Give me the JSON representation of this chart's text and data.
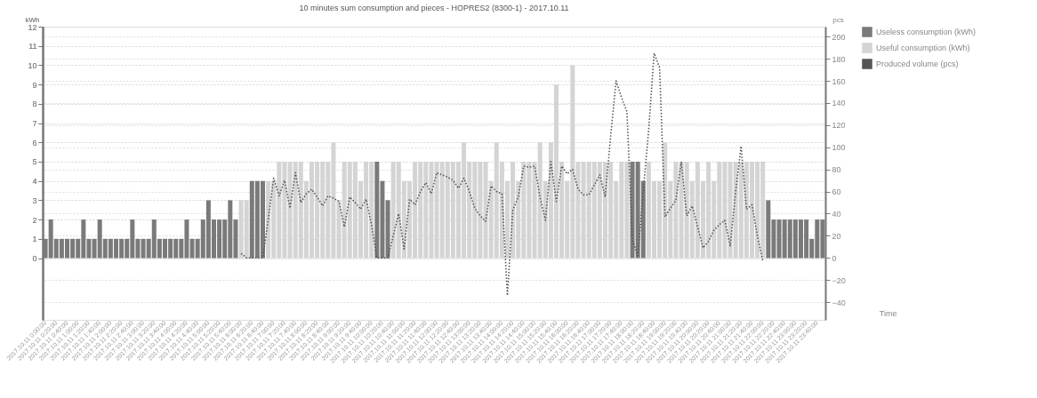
{
  "chart_data": {
    "type": "bar",
    "title": "10 minutes sum consumption and pieces - HOPRES2 (8300-1) - 2017.10.11",
    "xlabel": "Time",
    "ylabel": "kWh",
    "y2label": "pcs",
    "categories": [
      "2017.10.11 0:00:00",
      null,
      "2017.10.11 0:20:00",
      null,
      "2017.10.11 0:40:00",
      null,
      "2017.10.11 1:00:00",
      null,
      "2017.10.11 1:20:00",
      null,
      "2017.10.11 1:40:00",
      null,
      "2017.10.11 2:00:00",
      null,
      "2017.10.11 2:20:00",
      null,
      "2017.10.11 2:40:00",
      null,
      "2017.10.11 3:00:00",
      null,
      "2017.10.11 3:20:00",
      null,
      "2017.10.11 3:40:00",
      null,
      "2017.10.11 4:00:00",
      null,
      "2017.10.11 4:20:00",
      null,
      "2017.10.11 4:40:00",
      null,
      "2017.10.11 5:00:00",
      null,
      "2017.10.11 5:20:00",
      null,
      "2017.10.11 5:40:00",
      null,
      "2017.10.11 6:00:00",
      null,
      "2017.10.11 6:20:00",
      null,
      "2017.10.11 6:40:00",
      null,
      "2017.10.11 7:00:00",
      null,
      "2017.10.11 7:20:00",
      null,
      "2017.10.11 7:40:00",
      null,
      "2017.10.11 8:00:00",
      null,
      "2017.10.11 8:20:00",
      null,
      "2017.10.11 8:40:00",
      null,
      "2017.10.11 9:00:00",
      null,
      "2017.10.11 9:20:00",
      null,
      "2017.10.11 9:40:00",
      null,
      "2017.10.11 10:00:00",
      null,
      "2017.10.11 10:20:00",
      null,
      "2017.10.11 10:40:00",
      null,
      "2017.10.11 11:00:00",
      null,
      "2017.10.11 11:20:00",
      null,
      "2017.10.11 11:40:00",
      null,
      "2017.10.11 12:00:00",
      null,
      "2017.10.11 12:20:00",
      null,
      "2017.10.11 12:40:00",
      null,
      "2017.10.11 13:00:00",
      null,
      "2017.10.11 13:20:00",
      null,
      "2017.10.11 13:40:00",
      null,
      "2017.10.11 14:00:00",
      null,
      "2017.10.11 14:20:00",
      null,
      "2017.10.11 14:40:00",
      null,
      "2017.10.11 15:00:00",
      null,
      "2017.10.11 15:20:00",
      null,
      "2017.10.11 15:40:00",
      null,
      "2017.10.11 16:00:00",
      null,
      "2017.10.11 16:20:00",
      null,
      "2017.10.11 16:40:00",
      null,
      "2017.10.11 17:00:00",
      null,
      "2017.10.11 17:20:00",
      null,
      "2017.10.11 17:40:00",
      null,
      "2017.10.11 18:00:00",
      null,
      "2017.10.11 18:20:00",
      null,
      "2017.10.11 18:40:00",
      null,
      "2017.10.11 19:00:00",
      null,
      "2017.10.11 19:20:00",
      null,
      "2017.10.11 19:40:00",
      null,
      "2017.10.11 20:00:00",
      null,
      "2017.10.11 20:20:00",
      null,
      "2017.10.11 20:40:00",
      null,
      "2017.10.11 21:00:00",
      null,
      "2017.10.11 21:20:00",
      null,
      "2017.10.11 21:40:00",
      null,
      "2017.10.11 22:00:00",
      null,
      "2017.10.11 22:20:00",
      null,
      "2017.10.11 22:40:00",
      null,
      "2017.10.11 23:00:00",
      null,
      "2017.10.11 23:20:00",
      null,
      "2017.10.11 23:40:00",
      null
    ],
    "series": [
      {
        "name": "Useless consumption (kWh)",
        "color": "#7a7a7a",
        "values": [
          1,
          2,
          1,
          1,
          1,
          1,
          1,
          2,
          1,
          1,
          2,
          1,
          1,
          1,
          1,
          1,
          2,
          1,
          1,
          1,
          2,
          1,
          1,
          1,
          1,
          1,
          2,
          1,
          1,
          2,
          3,
          2,
          2,
          2,
          3,
          2,
          null,
          null,
          4,
          4,
          4,
          null,
          null,
          null,
          null,
          null,
          null,
          null,
          null,
          null,
          null,
          null,
          null,
          null,
          null,
          null,
          null,
          null,
          null,
          null,
          null,
          5,
          4,
          3,
          null,
          null,
          null,
          null,
          null,
          null,
          null,
          null,
          null,
          null,
          null,
          null,
          null,
          null,
          null,
          null,
          null,
          null,
          null,
          null,
          null,
          null,
          null,
          null,
          null,
          null,
          null,
          null,
          null,
          null,
          null,
          null,
          null,
          null,
          null,
          null,
          null,
          null,
          null,
          null,
          null,
          null,
          null,
          null,
          5,
          5,
          4,
          null,
          null,
          null,
          null,
          null,
          null,
          null,
          null,
          null,
          null,
          null,
          null,
          null,
          null,
          null,
          null,
          null,
          null,
          null,
          null,
          null,
          null,
          3,
          2,
          2,
          2,
          2,
          2,
          2,
          2,
          1,
          2,
          2
        ]
      },
      {
        "name": "Useful consumption (kWh)",
        "color": "#d4d4d4",
        "values": [
          null,
          null,
          null,
          null,
          null,
          null,
          null,
          null,
          null,
          null,
          null,
          null,
          null,
          null,
          null,
          null,
          null,
          null,
          null,
          null,
          null,
          null,
          null,
          null,
          null,
          null,
          null,
          null,
          null,
          null,
          null,
          null,
          null,
          null,
          null,
          null,
          3,
          3,
          null,
          null,
          null,
          4,
          4,
          5,
          5,
          5,
          5,
          5,
          4,
          5,
          5,
          5,
          5,
          6,
          3,
          5,
          5,
          5,
          4,
          5,
          5,
          null,
          null,
          null,
          5,
          5,
          4,
          4,
          5,
          5,
          5,
          5,
          5,
          5,
          5,
          5,
          5,
          6,
          5,
          5,
          5,
          5,
          4,
          6,
          5,
          4,
          5,
          4,
          5,
          5,
          5,
          6,
          4,
          6,
          9,
          5,
          4,
          10,
          5,
          5,
          5,
          5,
          5,
          5,
          5,
          4,
          5,
          5,
          null,
          null,
          null,
          5,
          4,
          4,
          6,
          4,
          5,
          5,
          5,
          4,
          5,
          4,
          5,
          4,
          5,
          5,
          5,
          5,
          5,
          5,
          5,
          5,
          5,
          null,
          null,
          null,
          null,
          null,
          null,
          null,
          null,
          null,
          null,
          null
        ]
      },
      {
        "name": "Produced volume (pcs)",
        "color": "#555555",
        "type": "line",
        "axis": "y2",
        "line_style": "dotted",
        "values": [
          null,
          null,
          null,
          null,
          null,
          null,
          null,
          null,
          null,
          null,
          null,
          null,
          null,
          null,
          null,
          null,
          null,
          null,
          null,
          null,
          null,
          null,
          null,
          null,
          null,
          null,
          null,
          null,
          null,
          null,
          null,
          null,
          null,
          null,
          null,
          null,
          4,
          0,
          0,
          0,
          0,
          35,
          72,
          56,
          70,
          45,
          77,
          50,
          58,
          62,
          55,
          47,
          56,
          54,
          51,
          28,
          55,
          50,
          44,
          53,
          30,
          0,
          0,
          0,
          20,
          40,
          8,
          53,
          48,
          60,
          68,
          58,
          77,
          75,
          73,
          70,
          63,
          72,
          60,
          45,
          38,
          33,
          65,
          60,
          58,
          -34,
          43,
          55,
          83,
          82,
          83,
          55,
          34,
          87,
          51,
          83,
          76,
          80,
          62,
          57,
          57,
          66,
          75,
          55,
          110,
          160,
          145,
          132,
          16,
          2,
          60,
          116,
          185,
          172,
          37,
          45,
          52,
          87,
          38,
          47,
          28,
          9,
          15,
          25,
          30,
          34,
          11,
          60,
          101,
          44,
          48,
          20,
          -3,
          null,
          null,
          null,
          null,
          null,
          null,
          null,
          null,
          null,
          null,
          null
        ]
      }
    ],
    "ylim": [
      -3.2,
      12
    ],
    "yticks": [
      0,
      1,
      2,
      3,
      4,
      5,
      6,
      7,
      8,
      9,
      10,
      11,
      12
    ],
    "y2lim": [
      -56,
      209
    ],
    "y2ticks": [
      -40,
      -20,
      0,
      20,
      40,
      60,
      80,
      100,
      120,
      140,
      160,
      180,
      200
    ],
    "grid": "y",
    "legend": "top right"
  }
}
